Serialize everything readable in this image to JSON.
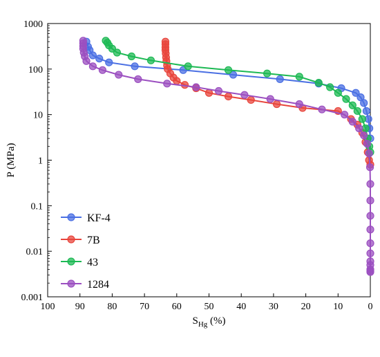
{
  "chart_data": {
    "type": "line",
    "xlabel": "S",
    "xlabel_sub": "Hg",
    "xlabel_unit": " (%)",
    "ylabel": "P (MPa)",
    "x_reversed": true,
    "y_log": true,
    "xlim": [
      100,
      0
    ],
    "ylim": [
      0.001,
      1000
    ],
    "x_ticks": [
      "100",
      "90",
      "80",
      "70",
      "60",
      "50",
      "40",
      "30",
      "20",
      "10",
      "0"
    ],
    "y_ticks": [
      "0.001",
      "0.01",
      "0.1",
      "1",
      "10",
      "100",
      "1000"
    ],
    "grid": false,
    "legend_position": "bottom-left",
    "series": [
      {
        "name": "KF-4",
        "color": "#4a6fe3",
        "x": [
          88.0,
          87.5,
          87.0,
          86.0,
          84.0,
          81.0,
          73.0,
          58.0,
          42.5,
          28.0,
          16.0,
          9.0,
          4.5,
          3.0,
          2.0,
          1.2,
          0.6,
          0.3,
          0.0
        ],
        "y": [
          400,
          310,
          260,
          200,
          170,
          140,
          115,
          95,
          75,
          60,
          48,
          38,
          30,
          24,
          18,
          12,
          8,
          5,
          3
        ]
      },
      {
        "name": "7B",
        "color": "#e8453c",
        "x": [
          63.5,
          63.5,
          63.5,
          63.5,
          63.4,
          63.3,
          63.2,
          63.0,
          62.8,
          62.0,
          61.0,
          60.0,
          57.5,
          54.0,
          50.0,
          44.0,
          37.0,
          29.0,
          21.0,
          10.0,
          6.0,
          4.0,
          2.5,
          1.5,
          0.8,
          0.4,
          0.0
        ],
        "y": [
          400,
          350,
          300,
          260,
          220,
          180,
          150,
          120,
          100,
          80,
          65,
          55,
          45,
          38,
          30,
          25,
          21,
          17,
          14,
          12,
          8,
          6,
          4,
          2.5,
          1.5,
          1.0,
          0.8
        ]
      },
      {
        "name": "43",
        "color": "#1db954",
        "x": [
          82.0,
          81.5,
          81.0,
          80.0,
          78.5,
          74.0,
          68.0,
          56.5,
          44.0,
          32.0,
          22.0,
          16.0,
          12.5,
          10.0,
          7.5,
          5.5,
          4.0,
          2.5,
          1.5,
          0.8,
          0.3,
          0.0
        ],
        "y": [
          420,
          380,
          330,
          280,
          230,
          190,
          155,
          115,
          95,
          80,
          68,
          50,
          40,
          30,
          22,
          16,
          12,
          8,
          5,
          3,
          2,
          1.5
        ]
      },
      {
        "name": "1284",
        "color": "#9b4fc0",
        "x": [
          89.0,
          89.0,
          89.0,
          89.0,
          88.8,
          88.5,
          88.0,
          86.0,
          83.0,
          78.0,
          72.0,
          63.0,
          54.0,
          47.0,
          39.0,
          31.0,
          22.0,
          15.0,
          8.0,
          5.5,
          3.5,
          2.0,
          1.0,
          0.4,
          0.1,
          0.0,
          0.0,
          0.0,
          0.0,
          0.0,
          0.0,
          0.0,
          0.0,
          0.0,
          0.0,
          0.0
        ],
        "y": [
          420,
          370,
          320,
          280,
          230,
          190,
          150,
          115,
          95,
          75,
          60,
          48,
          40,
          33,
          27,
          22,
          17,
          13,
          10,
          7,
          5,
          3.5,
          2.3,
          1.4,
          0.7,
          0.3,
          0.13,
          0.06,
          0.03,
          0.015,
          0.009,
          0.006,
          0.005,
          0.004,
          0.0037,
          0.0035
        ]
      }
    ]
  }
}
